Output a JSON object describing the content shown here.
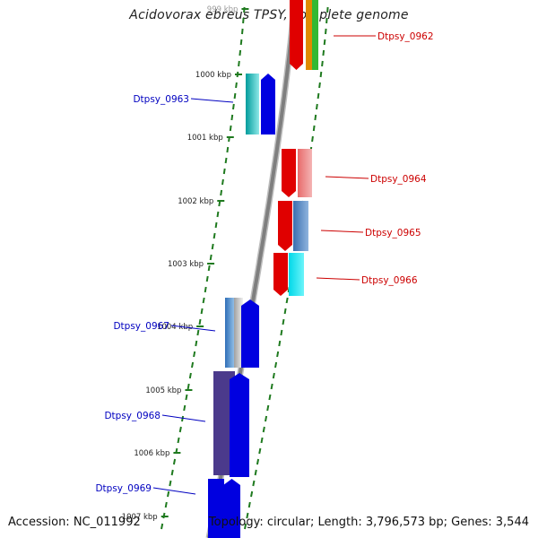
{
  "title": "Acidovorax ebreus TPSY, complete genome",
  "footer": {
    "accession": "Accession: NC_011992",
    "summary": "Topology: circular; Length: 3,796,573 bp; Genes: 3,544"
  },
  "colors": {
    "backbone": "#7f7f7f",
    "tick": "#1f7a1f",
    "plus_strand_label": "#0000c0",
    "minus_strand_label": "#cc0000"
  },
  "ticks": [
    "999 kbp",
    "1000 kbp",
    "1001 kbp",
    "1002 kbp",
    "1003 kbp",
    "1004 kbp",
    "1005 kbp",
    "1006 kbp",
    "1007 kbp"
  ],
  "genes": [
    {
      "id": "Dtpsy_0962",
      "strand": "minus",
      "color": "#e00000"
    },
    {
      "id": "Dtpsy_0963",
      "strand": "plus",
      "color": "#0000e0"
    },
    {
      "id": "Dtpsy_0964",
      "strand": "minus",
      "color": "#e00000"
    },
    {
      "id": "Dtpsy_0965",
      "strand": "minus",
      "color": "#e00000"
    },
    {
      "id": "Dtpsy_0966",
      "strand": "minus",
      "color": "#e00000"
    },
    {
      "id": "Dtpsy_0967",
      "strand": "plus",
      "color": "#0000e0"
    },
    {
      "id": "Dtpsy_0968",
      "strand": "plus",
      "color": "#0000e0"
    },
    {
      "id": "Dtpsy_0969",
      "strand": "plus",
      "color": "#0000e0"
    }
  ]
}
